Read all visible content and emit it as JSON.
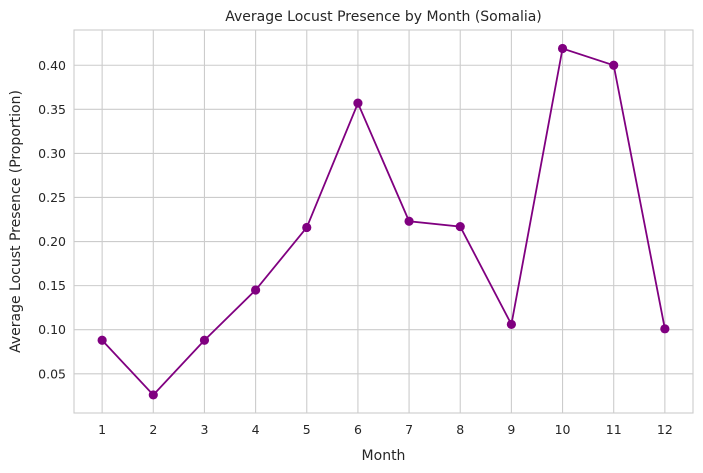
{
  "chart_data": {
    "type": "line",
    "title": "Average Locust Presence by Month (Somalia)",
    "xlabel": "Month",
    "ylabel": "Average Locust Presence (Proportion)",
    "x": [
      1,
      2,
      3,
      4,
      5,
      6,
      7,
      8,
      9,
      10,
      11,
      12
    ],
    "series": [
      {
        "values": [
          0.088,
          0.026,
          0.088,
          0.145,
          0.216,
          0.357,
          0.223,
          0.217,
          0.106,
          0.419,
          0.4,
          0.101
        ],
        "color": "#800080",
        "marker": "circle"
      }
    ],
    "xlim": [
      0.45,
      12.55
    ],
    "ylim": [
      0.0055,
      0.44
    ],
    "yticks": [
      0.05,
      0.1,
      0.15,
      0.2,
      0.25,
      0.3,
      0.35,
      0.4
    ],
    "ytick_labels": [
      "0.05",
      "0.10",
      "0.15",
      "0.20",
      "0.25",
      "0.30",
      "0.35",
      "0.40"
    ],
    "xticks": [
      1,
      2,
      3,
      4,
      5,
      6,
      7,
      8,
      9,
      10,
      11,
      12
    ],
    "xtick_labels": [
      "1",
      "2",
      "3",
      "4",
      "5",
      "6",
      "7",
      "8",
      "9",
      "10",
      "11",
      "12"
    ],
    "grid": true,
    "legend": "none"
  }
}
